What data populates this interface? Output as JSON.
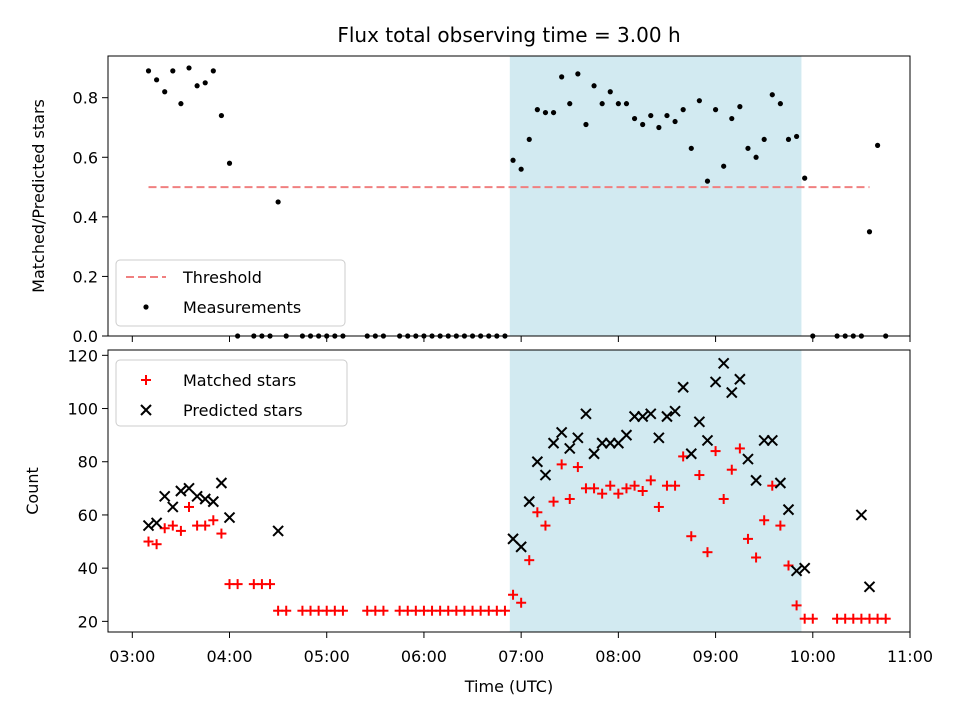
{
  "chart_data": [
    {
      "type": "scatter",
      "title": "Flux total observing time = 3.00 h",
      "xlabel": "",
      "ylabel": "Matched/Predicted stars",
      "ylim": [
        0,
        0.94
      ],
      "yticks": [
        0.0,
        0.2,
        0.4,
        0.6,
        0.8
      ],
      "ytick_labels": [
        "0.0",
        "0.2",
        "0.4",
        "0.6",
        "0.8"
      ],
      "shaded_interval": [
        "06:53",
        "09:53"
      ],
      "shade_color": "#add8e6",
      "legend_position": "lower left",
      "threshold": {
        "name": "Threshold",
        "value": 0.5,
        "x_range": [
          "03:10",
          "10:35"
        ],
        "color": "#f08080"
      },
      "series": [
        {
          "name": "Measurements",
          "color": "#000000",
          "marker": "dot",
          "points": [
            [
              "03:10",
              0.89
            ],
            [
              "03:15",
              0.86
            ],
            [
              "03:20",
              0.82
            ],
            [
              "03:25",
              0.89
            ],
            [
              "03:30",
              0.78
            ],
            [
              "03:35",
              0.9
            ],
            [
              "03:40",
              0.84
            ],
            [
              "03:45",
              0.85
            ],
            [
              "03:50",
              0.89
            ],
            [
              "03:55",
              0.74
            ],
            [
              "04:00",
              0.58
            ],
            [
              "04:05",
              0
            ],
            [
              "04:15",
              0
            ],
            [
              "04:20",
              0
            ],
            [
              "04:25",
              0
            ],
            [
              "04:30",
              0.45
            ],
            [
              "04:35",
              0
            ],
            [
              "04:45",
              0
            ],
            [
              "04:50",
              0
            ],
            [
              "04:55",
              0
            ],
            [
              "05:00",
              0
            ],
            [
              "05:05",
              0
            ],
            [
              "05:10",
              0
            ],
            [
              "05:25",
              0
            ],
            [
              "05:30",
              0
            ],
            [
              "05:35",
              0
            ],
            [
              "05:45",
              0
            ],
            [
              "05:50",
              0
            ],
            [
              "05:55",
              0
            ],
            [
              "06:00",
              0
            ],
            [
              "06:05",
              0
            ],
            [
              "06:10",
              0
            ],
            [
              "06:15",
              0
            ],
            [
              "06:20",
              0
            ],
            [
              "06:25",
              0
            ],
            [
              "06:30",
              0
            ],
            [
              "06:35",
              0
            ],
            [
              "06:40",
              0
            ],
            [
              "06:45",
              0
            ],
            [
              "06:50",
              0
            ],
            [
              "06:55",
              0.59
            ],
            [
              "07:00",
              0.56
            ],
            [
              "07:05",
              0.66
            ],
            [
              "07:10",
              0.76
            ],
            [
              "07:15",
              0.75
            ],
            [
              "07:20",
              0.75
            ],
            [
              "07:25",
              0.87
            ],
            [
              "07:30",
              0.78
            ],
            [
              "07:35",
              0.88
            ],
            [
              "07:40",
              0.71
            ],
            [
              "07:45",
              0.84
            ],
            [
              "07:50",
              0.78
            ],
            [
              "07:55",
              0.82
            ],
            [
              "08:00",
              0.78
            ],
            [
              "08:05",
              0.78
            ],
            [
              "08:10",
              0.73
            ],
            [
              "08:15",
              0.71
            ],
            [
              "08:20",
              0.74
            ],
            [
              "08:25",
              0.7
            ],
            [
              "08:30",
              0.74
            ],
            [
              "08:35",
              0.72
            ],
            [
              "08:40",
              0.76
            ],
            [
              "08:45",
              0.63
            ],
            [
              "08:50",
              0.79
            ],
            [
              "08:55",
              0.52
            ],
            [
              "09:00",
              0.76
            ],
            [
              "09:05",
              0.57
            ],
            [
              "09:10",
              0.73
            ],
            [
              "09:15",
              0.77
            ],
            [
              "09:20",
              0.63
            ],
            [
              "09:25",
              0.6
            ],
            [
              "09:30",
              0.66
            ],
            [
              "09:35",
              0.81
            ],
            [
              "09:40",
              0.78
            ],
            [
              "09:45",
              0.66
            ],
            [
              "09:50",
              0.67
            ],
            [
              "09:55",
              0.53
            ],
            [
              "10:00",
              0
            ],
            [
              "10:15",
              0
            ],
            [
              "10:20",
              0
            ],
            [
              "10:25",
              0
            ],
            [
              "10:30",
              0
            ],
            [
              "10:35",
              0.35
            ],
            [
              "10:40",
              0.64
            ],
            [
              "10:45",
              0
            ]
          ]
        }
      ]
    },
    {
      "type": "scatter",
      "title": "",
      "xlabel": "Time (UTC)",
      "ylabel": "Count",
      "ylim": [
        16,
        122
      ],
      "yticks": [
        20,
        40,
        60,
        80,
        100,
        120
      ],
      "xlim": [
        "02:45",
        "11:00"
      ],
      "xticks": [
        "03:00",
        "04:00",
        "05:00",
        "06:00",
        "07:00",
        "08:00",
        "09:00",
        "10:00",
        "11:00"
      ],
      "shaded_interval": [
        "06:53",
        "09:53"
      ],
      "shade_color": "#add8e6",
      "legend_position": "upper left",
      "series": [
        {
          "name": "Matched stars",
          "color": "#ff0000",
          "marker": "plus",
          "points": [
            [
              "03:10",
              50
            ],
            [
              "03:15",
              49
            ],
            [
              "03:20",
              55
            ],
            [
              "03:25",
              56
            ],
            [
              "03:30",
              54
            ],
            [
              "03:35",
              63
            ],
            [
              "03:40",
              56
            ],
            [
              "03:45",
              56
            ],
            [
              "03:50",
              58
            ],
            [
              "03:55",
              53
            ],
            [
              "04:00",
              34
            ],
            [
              "04:05",
              34
            ],
            [
              "04:15",
              34
            ],
            [
              "04:20",
              34
            ],
            [
              "04:25",
              34
            ],
            [
              "04:30",
              24
            ],
            [
              "04:35",
              24
            ],
            [
              "04:45",
              24
            ],
            [
              "04:50",
              24
            ],
            [
              "04:55",
              24
            ],
            [
              "05:00",
              24
            ],
            [
              "05:05",
              24
            ],
            [
              "05:10",
              24
            ],
            [
              "05:25",
              24
            ],
            [
              "05:30",
              24
            ],
            [
              "05:35",
              24
            ],
            [
              "05:45",
              24
            ],
            [
              "05:50",
              24
            ],
            [
              "05:55",
              24
            ],
            [
              "06:00",
              24
            ],
            [
              "06:05",
              24
            ],
            [
              "06:10",
              24
            ],
            [
              "06:15",
              24
            ],
            [
              "06:20",
              24
            ],
            [
              "06:25",
              24
            ],
            [
              "06:30",
              24
            ],
            [
              "06:35",
              24
            ],
            [
              "06:40",
              24
            ],
            [
              "06:45",
              24
            ],
            [
              "06:50",
              24
            ],
            [
              "06:55",
              30
            ],
            [
              "07:00",
              27
            ],
            [
              "07:05",
              43
            ],
            [
              "07:10",
              61
            ],
            [
              "07:15",
              56
            ],
            [
              "07:20",
              65
            ],
            [
              "07:25",
              79
            ],
            [
              "07:30",
              66
            ],
            [
              "07:35",
              78
            ],
            [
              "07:40",
              70
            ],
            [
              "07:45",
              70
            ],
            [
              "07:50",
              68
            ],
            [
              "07:55",
              71
            ],
            [
              "08:00",
              68
            ],
            [
              "08:05",
              70
            ],
            [
              "08:10",
              71
            ],
            [
              "08:15",
              69
            ],
            [
              "08:20",
              73
            ],
            [
              "08:25",
              63
            ],
            [
              "08:30",
              71
            ],
            [
              "08:35",
              71
            ],
            [
              "08:40",
              82
            ],
            [
              "08:45",
              52
            ],
            [
              "08:50",
              75
            ],
            [
              "08:55",
              46
            ],
            [
              "09:00",
              84
            ],
            [
              "09:05",
              66
            ],
            [
              "09:10",
              77
            ],
            [
              "09:15",
              85
            ],
            [
              "09:20",
              51
            ],
            [
              "09:25",
              44
            ],
            [
              "09:30",
              58
            ],
            [
              "09:35",
              71
            ],
            [
              "09:40",
              56
            ],
            [
              "09:45",
              41
            ],
            [
              "09:50",
              26
            ],
            [
              "09:55",
              21
            ],
            [
              "10:00",
              21
            ],
            [
              "10:15",
              21
            ],
            [
              "10:20",
              21
            ],
            [
              "10:25",
              21
            ],
            [
              "10:30",
              21
            ],
            [
              "10:35",
              21
            ],
            [
              "10:40",
              21
            ],
            [
              "10:45",
              21
            ]
          ]
        },
        {
          "name": "Predicted stars",
          "color": "#000000",
          "marker": "x",
          "points": [
            [
              "03:10",
              56
            ],
            [
              "03:15",
              57
            ],
            [
              "03:20",
              67
            ],
            [
              "03:25",
              63
            ],
            [
              "03:30",
              69
            ],
            [
              "03:35",
              70
            ],
            [
              "03:40",
              67
            ],
            [
              "03:45",
              66
            ],
            [
              "03:50",
              65
            ],
            [
              "03:55",
              72
            ],
            [
              "04:00",
              59
            ],
            [
              "04:30",
              54
            ],
            [
              "06:55",
              51
            ],
            [
              "07:00",
              48
            ],
            [
              "07:05",
              65
            ],
            [
              "07:10",
              80
            ],
            [
              "07:15",
              75
            ],
            [
              "07:20",
              87
            ],
            [
              "07:25",
              91
            ],
            [
              "07:30",
              85
            ],
            [
              "07:35",
              89
            ],
            [
              "07:40",
              98
            ],
            [
              "07:45",
              83
            ],
            [
              "07:50",
              87
            ],
            [
              "07:55",
              87
            ],
            [
              "08:00",
              87
            ],
            [
              "08:05",
              90
            ],
            [
              "08:10",
              97
            ],
            [
              "08:15",
              97
            ],
            [
              "08:20",
              98
            ],
            [
              "08:25",
              89
            ],
            [
              "08:30",
              97
            ],
            [
              "08:35",
              99
            ],
            [
              "08:40",
              108
            ],
            [
              "08:45",
              83
            ],
            [
              "08:50",
              95
            ],
            [
              "08:55",
              88
            ],
            [
              "09:00",
              110
            ],
            [
              "09:05",
              117
            ],
            [
              "09:10",
              106
            ],
            [
              "09:15",
              111
            ],
            [
              "09:20",
              81
            ],
            [
              "09:25",
              73
            ],
            [
              "09:30",
              88
            ],
            [
              "09:35",
              88
            ],
            [
              "09:40",
              72
            ],
            [
              "09:45",
              62
            ],
            [
              "09:50",
              39
            ],
            [
              "09:55",
              40
            ],
            [
              "10:30",
              60
            ],
            [
              "10:35",
              33
            ]
          ]
        }
      ]
    }
  ]
}
